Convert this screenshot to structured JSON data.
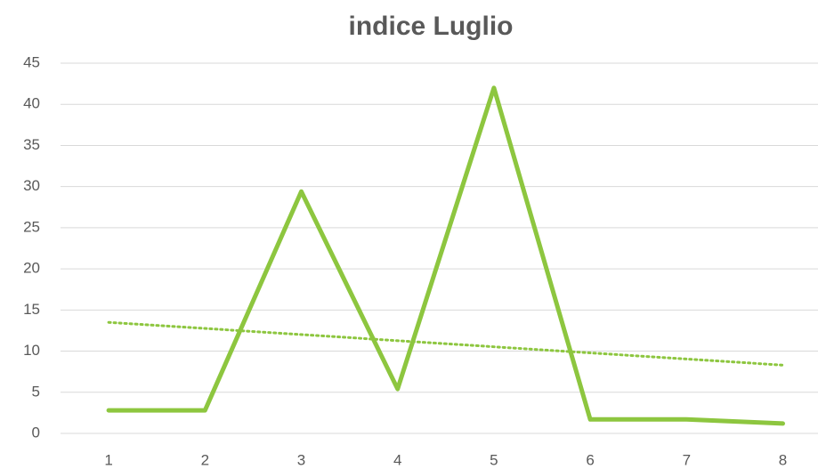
{
  "chart_data": {
    "type": "line",
    "title": "indice Luglio",
    "categories": [
      "1",
      "2",
      "3",
      "4",
      "5",
      "6",
      "7",
      "8"
    ],
    "series": [
      {
        "color": "#8dc63f",
        "values": [
          2.8,
          2.8,
          29.4,
          5.4,
          42,
          1.7,
          1.7,
          1.2
        ]
      }
    ],
    "trendline": {
      "type": "linear",
      "style": "dotted",
      "color": "#8dc63f",
      "values": [
        13.5,
        8.3
      ]
    },
    "ylim": [
      0,
      45
    ],
    "yticks": [
      0,
      5,
      10,
      15,
      20,
      25,
      30,
      35,
      40,
      45
    ],
    "grid": true
  }
}
